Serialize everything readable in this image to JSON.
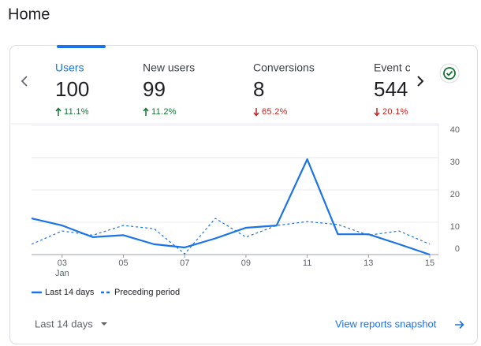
{
  "header": {
    "title": "Home"
  },
  "metrics": [
    {
      "name": "Users",
      "value": 100,
      "change": "11.1%",
      "direction": "up",
      "selected": true
    },
    {
      "name": "New users",
      "value": 99,
      "change": "11.2%",
      "direction": "up",
      "selected": false
    },
    {
      "name": "Conversions",
      "value": 8,
      "change": "65.2%",
      "direction": "down",
      "selected": false
    },
    {
      "name": "Event count",
      "value": 544,
      "change": "20.1%",
      "direction": "down",
      "selected": false
    }
  ],
  "chart_data": {
    "type": "line",
    "categories": [
      null,
      "03",
      null,
      "05",
      null,
      "07",
      null,
      "09",
      null,
      "11",
      null,
      "13",
      null,
      "15"
    ],
    "month": "Jan",
    "series": [
      {
        "name": "Last 14 days",
        "color": "#1a73e8",
        "style": "solid",
        "values": [
          11.2,
          9,
          5.4,
          6,
          3.2,
          2.2,
          5,
          8.3,
          9,
          29.5,
          6.3,
          6.3,
          3.2,
          0
        ]
      },
      {
        "name": "Preceding period",
        "color": "#1a73e8",
        "style": "dashed",
        "values": [
          3.2,
          7.3,
          6,
          9,
          8,
          0.2,
          11.2,
          5.4,
          9,
          10.2,
          9.3,
          6,
          7.3,
          3.2
        ]
      }
    ],
    "ylim": [
      0,
      40
    ],
    "yticks": [
      0,
      10,
      20,
      30,
      40
    ],
    "grid": true,
    "y_axis": "right"
  },
  "footer": {
    "date_range": "Last 14 days",
    "link": "View reports snapshot"
  }
}
